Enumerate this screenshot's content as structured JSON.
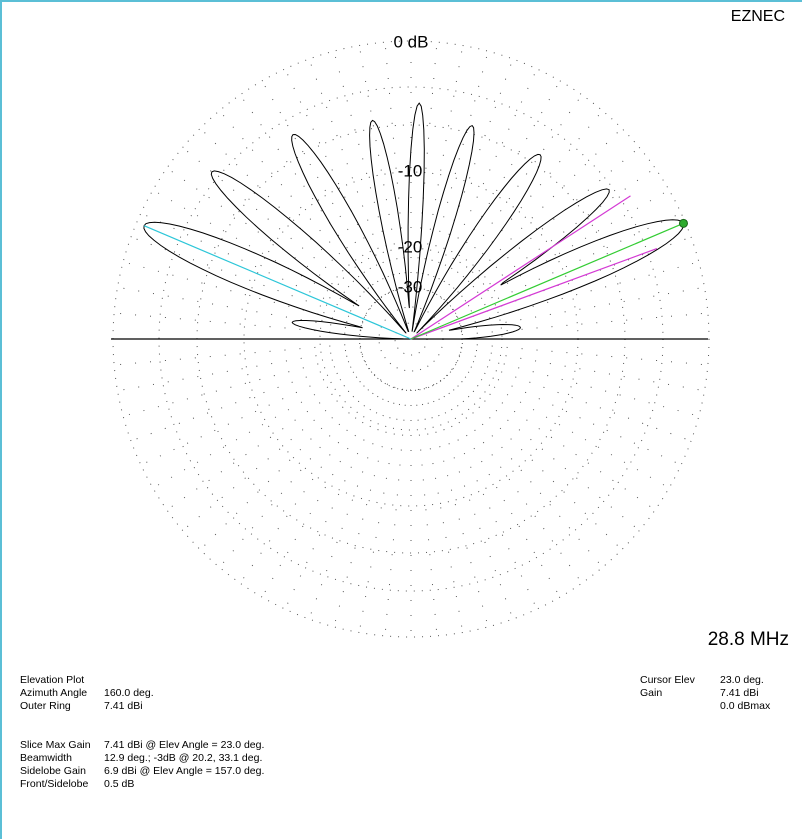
{
  "header": {
    "app": "EZNEC"
  },
  "plot": {
    "ring_labels": [
      "0 dB",
      "-10",
      "-20",
      "-30"
    ],
    "frequency": "28.8 MHz"
  },
  "info": {
    "title": "Elevation Plot",
    "rows": [
      {
        "label": "Azimuth Angle",
        "value": "160.0 deg."
      },
      {
        "label": "Outer Ring",
        "value": "7.41 dBi"
      }
    ]
  },
  "slice": [
    {
      "label": "Slice Max Gain",
      "value": "7.41 dBi @ Elev Angle = 23.0 deg."
    },
    {
      "label": "Beamwidth",
      "value": "12.9 deg.; -3dB @ 20.2, 33.1 deg."
    },
    {
      "label": "Sidelobe Gain",
      "value": "6.9 dBi @ Elev Angle = 157.0 deg."
    },
    {
      "label": "Front/Sidelobe",
      "value": "0.5 dB"
    }
  ],
  "cursor": {
    "rows": [
      {
        "label": "Cursor Elev",
        "value": "23.0 deg."
      },
      {
        "label": "Gain",
        "value": "7.41 dBi"
      }
    ],
    "extra": "0.0 dBmax"
  }
}
